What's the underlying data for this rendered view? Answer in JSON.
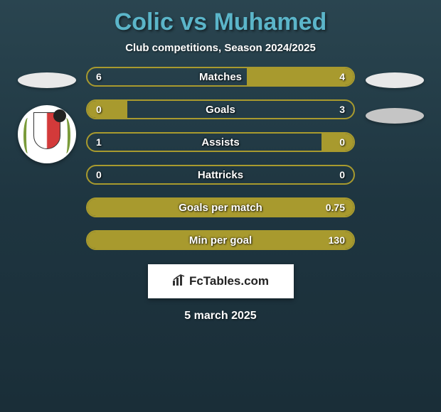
{
  "title": "Colic vs Muhamed",
  "subtitle": "Club competitions, Season 2024/2025",
  "colors": {
    "title": "#5bb5c9",
    "bar_border": "#a89a2e",
    "bar_fill": "#a89a2e",
    "bar_bg": "transparent",
    "right_ellipse2": "#c5c5c5"
  },
  "stats": [
    {
      "label": "Matches",
      "left_value": "6",
      "right_value": "4",
      "left_pct": 60,
      "right_pct": 40,
      "left_filled": false,
      "right_filled": true
    },
    {
      "label": "Goals",
      "left_value": "0",
      "right_value": "3",
      "left_pct": 15,
      "right_pct": 85,
      "left_filled": true,
      "right_filled": false
    },
    {
      "label": "Assists",
      "left_value": "1",
      "right_value": "0",
      "left_pct": 88,
      "right_pct": 12,
      "left_filled": false,
      "right_filled": true
    },
    {
      "label": "Hattricks",
      "left_value": "0",
      "right_value": "0",
      "left_pct": 0,
      "right_pct": 0,
      "left_filled": false,
      "right_filled": false
    },
    {
      "label": "Goals per match",
      "left_value": "",
      "right_value": "0.75",
      "left_pct": 0,
      "right_pct": 100,
      "left_filled": false,
      "right_filled": true
    },
    {
      "label": "Min per goal",
      "left_value": "",
      "right_value": "130",
      "left_pct": 0,
      "right_pct": 100,
      "left_filled": false,
      "right_filled": true
    }
  ],
  "footer_brand": "FcTables.com",
  "footer_date": "5 march 2025"
}
